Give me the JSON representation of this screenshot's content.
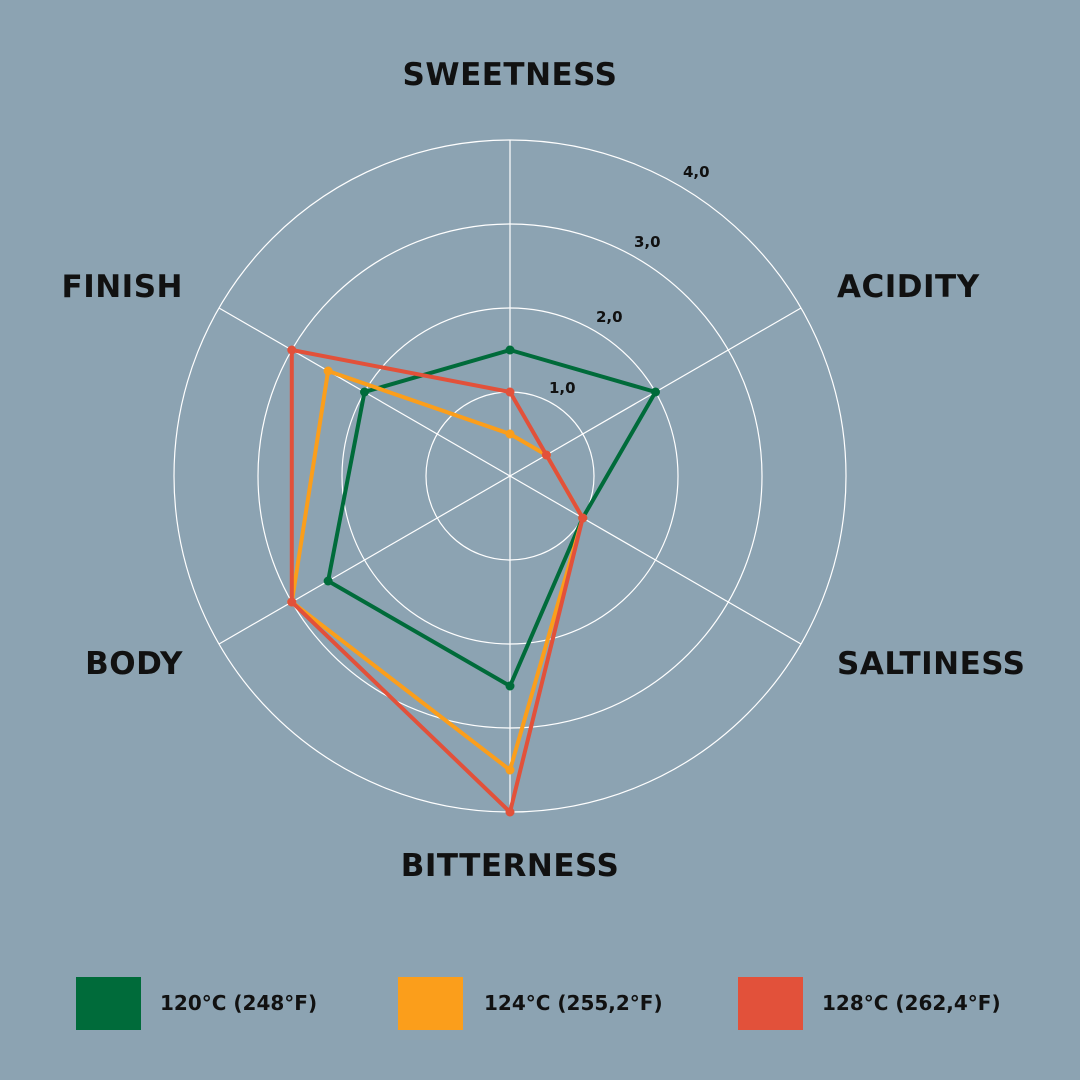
{
  "chart_data": {
    "type": "radar",
    "axes": [
      "SWEETNESS",
      "ACIDITY",
      "SALTINESS",
      "BITTERNESS",
      "BODY",
      "FINISH"
    ],
    "rlim": [
      0,
      4
    ],
    "ticks": [
      "1,0",
      "2,0",
      "3,0",
      "4,0"
    ],
    "tick_values": [
      1,
      2,
      3,
      4
    ],
    "grid": true,
    "legend_position": "bottom",
    "series": [
      {
        "name": "120°C (248°F)",
        "color": "#006b3a",
        "values": [
          1.5,
          2.0,
          1.0,
          2.5,
          2.5,
          2.0
        ]
      },
      {
        "name": "124°C (255,2°F)",
        "color": "#fb9e1b",
        "values": [
          0.5,
          0.5,
          1.0,
          3.5,
          3.0,
          2.5
        ]
      },
      {
        "name": "128°C (262,4°F)",
        "color": "#e2513a",
        "values": [
          1.0,
          0.5,
          1.0,
          4.0,
          3.0,
          3.0
        ]
      }
    ]
  }
}
